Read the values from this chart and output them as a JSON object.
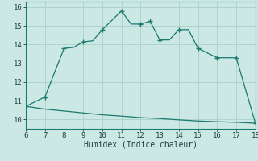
{
  "xlabel": "Humidex (Indice chaleur)",
  "bg_color": "#cce8e4",
  "grid_color": "#aacfca",
  "line_color": "#1a7a6e",
  "x_main": [
    6,
    7,
    8,
    8.5,
    9,
    9.5,
    10,
    11,
    11.5,
    12,
    12.5,
    13,
    13.5,
    14,
    14.5,
    15,
    16,
    17,
    18
  ],
  "y_main": [
    10.7,
    11.2,
    13.8,
    13.85,
    14.15,
    14.2,
    14.8,
    15.8,
    15.1,
    15.1,
    15.25,
    14.25,
    14.25,
    14.8,
    14.8,
    13.8,
    13.3,
    13.3,
    9.8
  ],
  "x_flat": [
    6,
    7,
    8,
    9,
    10,
    11,
    12,
    13,
    14,
    15,
    16,
    17,
    18
  ],
  "y_flat": [
    10.7,
    10.55,
    10.45,
    10.35,
    10.25,
    10.18,
    10.1,
    10.05,
    9.98,
    9.92,
    9.88,
    9.85,
    9.8
  ],
  "marker_x": [
    6,
    7,
    8,
    9,
    10,
    11,
    12,
    12.5,
    13,
    14,
    15,
    16,
    17,
    18
  ],
  "marker_y": [
    10.7,
    11.2,
    13.8,
    14.15,
    14.8,
    15.8,
    15.1,
    15.25,
    14.25,
    14.8,
    13.8,
    13.3,
    13.3,
    9.8
  ],
  "xlim": [
    6,
    18
  ],
  "ylim": [
    9.5,
    16.3
  ],
  "xticks": [
    6,
    7,
    8,
    9,
    10,
    11,
    12,
    13,
    14,
    15,
    16,
    17,
    18
  ],
  "yticks": [
    10,
    11,
    12,
    13,
    14,
    15,
    16
  ],
  "axis_fontsize": 7,
  "tick_fontsize": 6.5
}
